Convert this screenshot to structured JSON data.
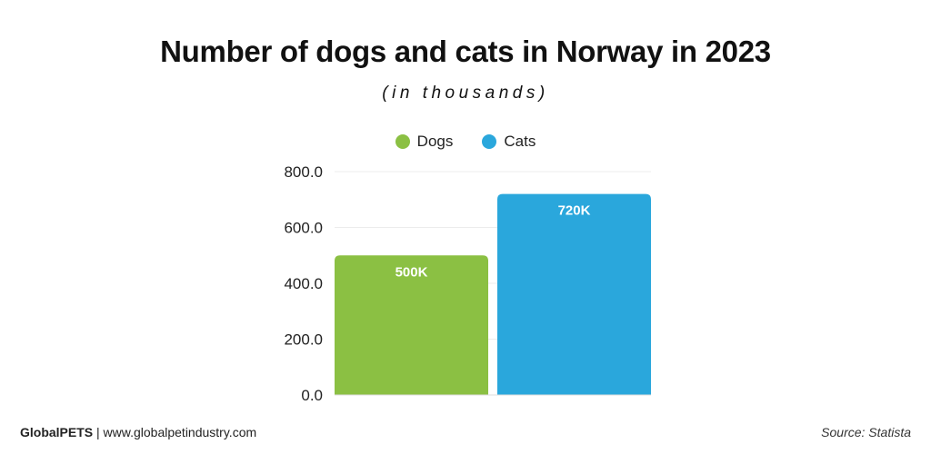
{
  "title": "Number of dogs and cats in Norway in 2023",
  "subtitle": "(in thousands)",
  "footer": {
    "brand": "GlobalPETS",
    "separator": " | ",
    "site": "www.globalpetindustry.com",
    "source": "Source: Statista"
  },
  "chart_data": {
    "type": "bar",
    "title": "Number of dogs and cats in Norway in 2023",
    "subtitle": "(in thousands)",
    "categories": [
      "Dogs",
      "Cats"
    ],
    "series": [
      {
        "name": "Dogs",
        "values": [
          500,
          null
        ],
        "color": "#8bc043",
        "labels": [
          "500K",
          null
        ]
      },
      {
        "name": "Cats",
        "values": [
          null,
          720
        ],
        "color": "#2aa7dc",
        "labels": [
          null,
          "720K"
        ]
      }
    ],
    "legend": [
      {
        "name": "Dogs",
        "color": "#8bc043"
      },
      {
        "name": "Cats",
        "color": "#2aa7dc"
      }
    ],
    "legend_position": "top-center",
    "ylim": [
      0,
      800
    ],
    "yticks": [
      "0.0",
      "200.0",
      "400.0",
      "600.0",
      "800.0"
    ],
    "ytick_values": [
      0,
      200,
      400,
      600,
      800
    ],
    "grid": true
  }
}
